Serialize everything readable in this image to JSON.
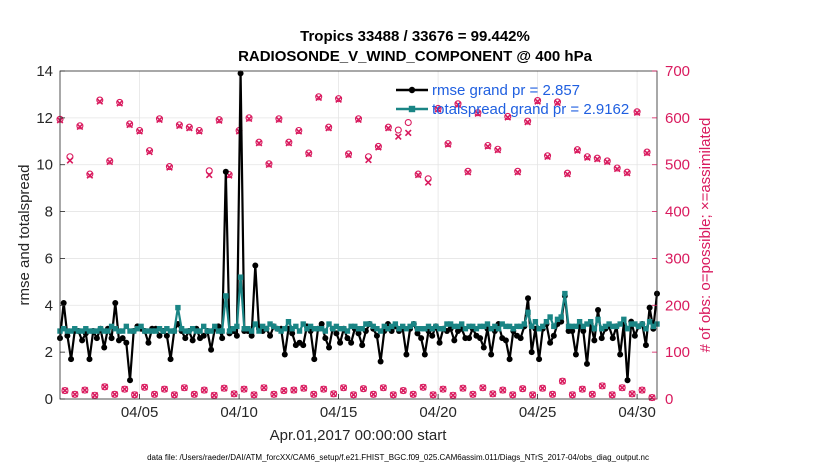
{
  "chart_data": {
    "type": "line",
    "title_line1": "Tropics 33488 / 33676 = 99.442%",
    "title_line2": "RADIOSONDE_V_WIND_COMPONENT @ 400 hPa",
    "xlabel": "Apr.01,2017 00:00:00 start",
    "ylabel_left": "rmse and totalspread",
    "ylabel_right": "# of obs: o=possible; ×=assimilated",
    "footer": "data file: /Users/raeder/DAI/ATM_forcXX/CAM6_setup/f.e21.FHIST_BGC.f09_025.CAM6assim.011/Diags_NTrS_2017-04/obs_diag_output.nc",
    "x_range": [
      1.0,
      31.0
    ],
    "ylim_left": [
      0,
      14
    ],
    "ylim_right": [
      0,
      700
    ],
    "x_tick_values": [
      5,
      10,
      15,
      20,
      25,
      30
    ],
    "x_tick_labels": [
      "04/05",
      "04/10",
      "04/15",
      "04/20",
      "04/25",
      "04/30"
    ],
    "y_left_ticks": [
      "0",
      "2",
      "4",
      "6",
      "8",
      "10",
      "12",
      "14"
    ],
    "y_right_ticks": [
      "0",
      "100",
      "200",
      "300",
      "400",
      "500",
      "600",
      "700"
    ],
    "grid": true,
    "legend_position": "top-right",
    "colors": {
      "rmse": "#000000",
      "spread": "#1a8585",
      "obs": "#d91a5e",
      "legend_text": "#1f5fe0",
      "grid": "#e4e4e4"
    },
    "series": [
      {
        "name": "rmse grand pr = 2.857",
        "key": "rmse",
        "values": [
          2.6,
          4.1,
          2.7,
          1.7,
          2.9,
          2.9,
          2.5,
          2.8,
          1.7,
          2.9,
          2.6,
          3.0,
          2.2,
          3.0,
          2.6,
          4.1,
          2.5,
          2.6,
          2.4,
          0.8,
          2.9,
          3.1,
          3.0,
          2.9,
          2.4,
          3.0,
          3.0,
          2.7,
          2.9,
          2.7,
          1.7,
          2.9,
          3.2,
          2.9,
          2.6,
          2.9,
          2.5,
          3.0,
          2.6,
          2.7,
          2.9,
          2.1,
          3.0,
          3.1,
          2.6,
          9.7,
          2.8,
          2.9,
          2.7,
          13.9,
          2.9,
          2.9,
          2.7,
          5.7,
          3.0,
          2.9,
          3.0,
          2.7,
          3.1,
          3.0,
          3.0,
          1.9,
          3.0,
          2.8,
          2.3,
          2.4,
          2.3,
          3.1,
          2.9,
          1.7,
          3.0,
          3.2,
          2.6,
          2.2,
          3.0,
          2.8,
          2.4,
          3.0,
          2.6,
          2.4,
          3.0,
          2.8,
          2.3,
          2.9,
          3.2,
          3.0,
          2.7,
          1.6,
          2.9,
          3.2,
          2.9,
          3.1,
          2.9,
          3.0,
          1.9,
          3.0,
          3.2,
          2.8,
          2.6,
          1.9,
          2.9,
          2.7,
          3.1,
          2.4,
          3.0,
          2.9,
          3.0,
          2.5,
          2.9,
          3.0,
          2.6,
          2.6,
          3.0,
          2.7,
          2.6,
          2.2,
          3.0,
          1.9,
          2.9,
          3.2,
          2.6,
          2.5,
          1.7,
          2.9,
          2.7,
          2.6,
          3.1,
          4.3,
          2.0,
          3.0,
          1.7,
          3.0,
          3.2,
          2.4,
          2.7,
          3.2,
          3.3,
          4.4,
          2.9,
          2.9,
          1.9,
          3.1,
          2.9,
          1.5,
          3.2,
          2.5,
          3.8,
          2.6,
          3.0,
          3.1,
          2.6,
          3.1,
          1.9,
          3.2,
          0.8,
          3.3,
          2.7,
          3.1,
          3.2,
          2.3,
          3.9,
          3.0,
          4.5
        ]
      },
      {
        "name": "totalspread grand pr = 2.9162",
        "key": "spread",
        "values": [
          2.9,
          3.0,
          2.9,
          2.9,
          3.0,
          2.9,
          2.9,
          3.0,
          2.9,
          2.9,
          2.9,
          3.0,
          2.9,
          2.9,
          3.1,
          3.0,
          2.9,
          2.9,
          3.1,
          2.9,
          2.9,
          3.0,
          3.1,
          2.9,
          2.9,
          2.9,
          2.9,
          3.0,
          2.9,
          3.0,
          2.9,
          2.9,
          3.9,
          3.0,
          2.9,
          2.9,
          3.0,
          2.9,
          2.9,
          3.1,
          2.9,
          2.9,
          3.1,
          2.9,
          2.9,
          4.4,
          2.9,
          3.0,
          3.1,
          5.2,
          3.0,
          3.0,
          2.9,
          3.2,
          2.9,
          3.1,
          3.0,
          3.2,
          3.1,
          3.0,
          2.9,
          3.0,
          3.3,
          3.0,
          3.1,
          2.9,
          3.2,
          3.0,
          3.1,
          3.0,
          3.0,
          3.0,
          2.9,
          3.2,
          3.0,
          3.1,
          3.0,
          3.0,
          2.9,
          3.1,
          3.1,
          3.0,
          3.0,
          3.2,
          3.2,
          3.1,
          3.0,
          2.9,
          3.1,
          3.0,
          3.1,
          3.2,
          3.0,
          3.1,
          3.0,
          3.1,
          3.2,
          3.0,
          3.0,
          3.0,
          3.1,
          3.0,
          3.1,
          3.0,
          3.0,
          3.2,
          3.2,
          3.1,
          3.1,
          3.2,
          3.0,
          3.1,
          3.1,
          3.0,
          3.1,
          3.1,
          3.2,
          3.0,
          3.1,
          3.0,
          3.2,
          3.1,
          3.1,
          3.0,
          3.1,
          3.1,
          3.2,
          3.7,
          3.1,
          3.3,
          3.0,
          3.1,
          3.3,
          3.5,
          3.1,
          3.4,
          3.5,
          4.5,
          3.1,
          3.1,
          3.1,
          3.3,
          3.1,
          3.2,
          3.3,
          3.0,
          3.4,
          3.0,
          3.1,
          3.2,
          3.1,
          3.1,
          3.2,
          3.4,
          3.0,
          3.2,
          3.2,
          3.1,
          3.2,
          3.0,
          3.3,
          3.1,
          3.2
        ]
      }
    ],
    "obs_possible": [
      {
        "x": 1.0,
        "v": 597
      },
      {
        "x": 1.5,
        "v": 517
      },
      {
        "x": 2.0,
        "v": 583
      },
      {
        "x": 2.5,
        "v": 480
      },
      {
        "x": 3.0,
        "v": 638
      },
      {
        "x": 3.5,
        "v": 508
      },
      {
        "x": 4.0,
        "v": 633
      },
      {
        "x": 4.5,
        "v": 587
      },
      {
        "x": 5.0,
        "v": 573
      },
      {
        "x": 5.5,
        "v": 530
      },
      {
        "x": 6.0,
        "v": 598
      },
      {
        "x": 6.5,
        "v": 496
      },
      {
        "x": 7.0,
        "v": 585
      },
      {
        "x": 7.5,
        "v": 580
      },
      {
        "x": 8.0,
        "v": 573
      },
      {
        "x": 8.5,
        "v": 487
      },
      {
        "x": 9.0,
        "v": 596
      },
      {
        "x": 9.5,
        "v": 479
      },
      {
        "x": 10.0,
        "v": 573
      },
      {
        "x": 10.5,
        "v": 600
      },
      {
        "x": 11.0,
        "v": 548
      },
      {
        "x": 11.5,
        "v": 502
      },
      {
        "x": 12.0,
        "v": 598
      },
      {
        "x": 12.5,
        "v": 548
      },
      {
        "x": 13.0,
        "v": 573
      },
      {
        "x": 13.5,
        "v": 525
      },
      {
        "x": 14.0,
        "v": 645
      },
      {
        "x": 14.5,
        "v": 580
      },
      {
        "x": 15.0,
        "v": 641
      },
      {
        "x": 15.5,
        "v": 523
      },
      {
        "x": 16.0,
        "v": 598
      },
      {
        "x": 16.5,
        "v": 517
      },
      {
        "x": 17.0,
        "v": 539
      },
      {
        "x": 17.5,
        "v": 580
      },
      {
        "x": 18.0,
        "v": 574
      },
      {
        "x": 18.5,
        "v": 590
      },
      {
        "x": 19.0,
        "v": 480
      },
      {
        "x": 19.5,
        "v": 470
      },
      {
        "x": 20.0,
        "v": 620
      },
      {
        "x": 20.5,
        "v": 545
      },
      {
        "x": 21.0,
        "v": 630
      },
      {
        "x": 21.5,
        "v": 486
      },
      {
        "x": 22.0,
        "v": 611
      },
      {
        "x": 22.5,
        "v": 541
      },
      {
        "x": 23.0,
        "v": 533
      },
      {
        "x": 23.5,
        "v": 603
      },
      {
        "x": 24.0,
        "v": 486
      },
      {
        "x": 24.5,
        "v": 593
      },
      {
        "x": 25.0,
        "v": 637
      },
      {
        "x": 25.5,
        "v": 519
      },
      {
        "x": 26.0,
        "v": 634
      },
      {
        "x": 26.5,
        "v": 482
      },
      {
        "x": 27.0,
        "v": 532
      },
      {
        "x": 27.5,
        "v": 517
      },
      {
        "x": 28.0,
        "v": 514
      },
      {
        "x": 28.5,
        "v": 508
      },
      {
        "x": 29.0,
        "v": 493
      },
      {
        "x": 29.5,
        "v": 484
      },
      {
        "x": 30.0,
        "v": 613
      },
      {
        "x": 30.5,
        "v": 527
      }
    ],
    "obs_assimilated": [
      {
        "x": 1.0,
        "v": 595
      },
      {
        "x": 1.5,
        "v": 509
      },
      {
        "x": 2.0,
        "v": 581
      },
      {
        "x": 2.5,
        "v": 477
      },
      {
        "x": 3.0,
        "v": 635
      },
      {
        "x": 3.5,
        "v": 506
      },
      {
        "x": 4.0,
        "v": 631
      },
      {
        "x": 4.5,
        "v": 585
      },
      {
        "x": 5.0,
        "v": 571
      },
      {
        "x": 5.5,
        "v": 527
      },
      {
        "x": 6.0,
        "v": 596
      },
      {
        "x": 6.5,
        "v": 494
      },
      {
        "x": 7.0,
        "v": 583
      },
      {
        "x": 7.5,
        "v": 578
      },
      {
        "x": 8.0,
        "v": 571
      },
      {
        "x": 8.5,
        "v": 478
      },
      {
        "x": 9.0,
        "v": 594
      },
      {
        "x": 9.5,
        "v": 477
      },
      {
        "x": 10.0,
        "v": 571
      },
      {
        "x": 10.5,
        "v": 598
      },
      {
        "x": 11.0,
        "v": 546
      },
      {
        "x": 11.5,
        "v": 500
      },
      {
        "x": 12.0,
        "v": 596
      },
      {
        "x": 12.5,
        "v": 546
      },
      {
        "x": 13.0,
        "v": 571
      },
      {
        "x": 13.5,
        "v": 523
      },
      {
        "x": 14.0,
        "v": 643
      },
      {
        "x": 14.5,
        "v": 578
      },
      {
        "x": 15.0,
        "v": 639
      },
      {
        "x": 15.5,
        "v": 521
      },
      {
        "x": 16.0,
        "v": 596
      },
      {
        "x": 16.5,
        "v": 510
      },
      {
        "x": 17.0,
        "v": 537
      },
      {
        "x": 17.5,
        "v": 578
      },
      {
        "x": 18.0,
        "v": 560
      },
      {
        "x": 18.5,
        "v": 568
      },
      {
        "x": 19.0,
        "v": 478
      },
      {
        "x": 19.5,
        "v": 462
      },
      {
        "x": 20.0,
        "v": 618
      },
      {
        "x": 20.5,
        "v": 543
      },
      {
        "x": 21.0,
        "v": 628
      },
      {
        "x": 21.5,
        "v": 484
      },
      {
        "x": 22.0,
        "v": 609
      },
      {
        "x": 22.5,
        "v": 539
      },
      {
        "x": 23.0,
        "v": 531
      },
      {
        "x": 23.5,
        "v": 601
      },
      {
        "x": 24.0,
        "v": 484
      },
      {
        "x": 24.5,
        "v": 591
      },
      {
        "x": 25.0,
        "v": 635
      },
      {
        "x": 25.5,
        "v": 517
      },
      {
        "x": 26.0,
        "v": 632
      },
      {
        "x": 26.5,
        "v": 480
      },
      {
        "x": 27.0,
        "v": 530
      },
      {
        "x": 27.5,
        "v": 515
      },
      {
        "x": 28.0,
        "v": 512
      },
      {
        "x": 28.5,
        "v": 506
      },
      {
        "x": 29.0,
        "v": 491
      },
      {
        "x": 29.5,
        "v": 482
      },
      {
        "x": 30.0,
        "v": 611
      },
      {
        "x": 30.5,
        "v": 525
      }
    ],
    "obs_low_possible": [
      {
        "x": 1.25,
        "v": 18
      },
      {
        "x": 1.75,
        "v": 10
      },
      {
        "x": 2.25,
        "v": 19
      },
      {
        "x": 2.75,
        "v": 8
      },
      {
        "x": 3.25,
        "v": 26
      },
      {
        "x": 3.75,
        "v": 10
      },
      {
        "x": 4.25,
        "v": 21
      },
      {
        "x": 4.75,
        "v": 9
      },
      {
        "x": 5.25,
        "v": 25
      },
      {
        "x": 5.75,
        "v": 10
      },
      {
        "x": 6.25,
        "v": 21
      },
      {
        "x": 6.75,
        "v": 9
      },
      {
        "x": 7.25,
        "v": 24
      },
      {
        "x": 7.75,
        "v": 10
      },
      {
        "x": 8.25,
        "v": 19
      },
      {
        "x": 8.75,
        "v": 8
      },
      {
        "x": 9.25,
        "v": 23
      },
      {
        "x": 9.75,
        "v": 11
      },
      {
        "x": 10.25,
        "v": 21
      },
      {
        "x": 10.75,
        "v": 9
      },
      {
        "x": 11.25,
        "v": 24
      },
      {
        "x": 11.75,
        "v": 10
      },
      {
        "x": 12.25,
        "v": 18
      },
      {
        "x": 12.75,
        "v": 19
      },
      {
        "x": 13.25,
        "v": 23
      },
      {
        "x": 13.75,
        "v": 10
      },
      {
        "x": 14.25,
        "v": 21
      },
      {
        "x": 14.75,
        "v": 11
      },
      {
        "x": 15.25,
        "v": 24
      },
      {
        "x": 15.75,
        "v": 9
      },
      {
        "x": 16.25,
        "v": 22
      },
      {
        "x": 16.75,
        "v": 10
      },
      {
        "x": 17.25,
        "v": 24
      },
      {
        "x": 17.75,
        "v": 9
      },
      {
        "x": 18.25,
        "v": 18
      },
      {
        "x": 18.75,
        "v": 10
      },
      {
        "x": 19.25,
        "v": 25
      },
      {
        "x": 19.75,
        "v": 9
      },
      {
        "x": 20.25,
        "v": 21
      },
      {
        "x": 20.75,
        "v": 8
      },
      {
        "x": 21.25,
        "v": 23
      },
      {
        "x": 21.75,
        "v": 10
      },
      {
        "x": 22.25,
        "v": 24
      },
      {
        "x": 22.75,
        "v": 11
      },
      {
        "x": 23.25,
        "v": 19
      },
      {
        "x": 23.75,
        "v": 9
      },
      {
        "x": 24.25,
        "v": 22
      },
      {
        "x": 24.75,
        "v": 9
      },
      {
        "x": 25.25,
        "v": 23
      },
      {
        "x": 25.75,
        "v": 10
      },
      {
        "x": 26.25,
        "v": 38
      },
      {
        "x": 26.75,
        "v": 9
      },
      {
        "x": 27.25,
        "v": 21
      },
      {
        "x": 27.75,
        "v": 10
      },
      {
        "x": 28.25,
        "v": 28
      },
      {
        "x": 28.75,
        "v": 9
      },
      {
        "x": 29.25,
        "v": 24
      },
      {
        "x": 29.75,
        "v": 11
      },
      {
        "x": 30.25,
        "v": 19
      },
      {
        "x": 30.75,
        "v": 3
      }
    ]
  }
}
